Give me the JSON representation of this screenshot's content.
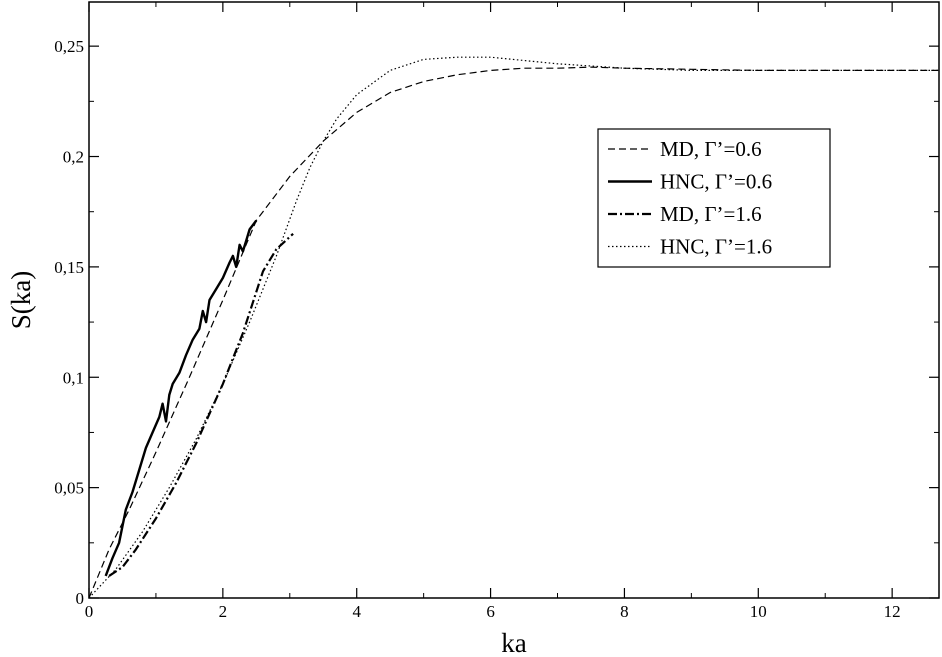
{
  "chart_data": {
    "type": "line",
    "title": "",
    "xlabel": "ka",
    "ylabel": "S(ka)",
    "xlim": [
      0,
      12.7
    ],
    "ylim": [
      0,
      0.27
    ],
    "grid": false,
    "legend_placement": "top-right",
    "x_ticks": [
      {
        "value": 0,
        "label": "0"
      },
      {
        "value": 2,
        "label": "2"
      },
      {
        "value": 4,
        "label": "4"
      },
      {
        "value": 6,
        "label": "6"
      },
      {
        "value": 8,
        "label": "8"
      },
      {
        "value": 10,
        "label": "10"
      },
      {
        "value": 12,
        "label": "12"
      }
    ],
    "y_ticks": [
      {
        "value": 0,
        "label": "0"
      },
      {
        "value": 0.05,
        "label": "0,05"
      },
      {
        "value": 0.1,
        "label": "0,1"
      },
      {
        "value": 0.15,
        "label": "0,15"
      },
      {
        "value": 0.2,
        "label": "0,2"
      },
      {
        "value": 0.25,
        "label": "0,25"
      }
    ],
    "series": [
      {
        "name": "MD,  Γ’=0.6",
        "style": "dashed",
        "x": [
          0,
          0.3,
          0.6,
          1.0,
          1.5,
          2.0,
          2.5,
          3.0,
          3.5,
          4.0,
          4.5,
          5.0,
          5.5,
          6.0,
          6.5,
          7.0,
          7.5,
          8.0,
          9.0,
          10.0,
          11.0,
          12.0,
          12.7
        ],
        "y": [
          0,
          0.022,
          0.04,
          0.066,
          0.1,
          0.135,
          0.171,
          0.191,
          0.207,
          0.22,
          0.229,
          0.234,
          0.237,
          0.239,
          0.24,
          0.24,
          0.2405,
          0.24,
          0.2395,
          0.239,
          0.239,
          0.239,
          0.239
        ]
      },
      {
        "name": "HNC,  Γ’=0.6",
        "style": "solid",
        "x": [
          0.25,
          0.35,
          0.45,
          0.55,
          0.65,
          0.75,
          0.85,
          0.95,
          1.05,
          1.1,
          1.15,
          1.2,
          1.25,
          1.35,
          1.45,
          1.55,
          1.65,
          1.7,
          1.75,
          1.8,
          1.9,
          2.0,
          2.1,
          2.15,
          2.2,
          2.25,
          2.3,
          2.35,
          2.4,
          2.5
        ],
        "y": [
          0.01,
          0.018,
          0.025,
          0.04,
          0.048,
          0.058,
          0.068,
          0.075,
          0.082,
          0.088,
          0.08,
          0.092,
          0.097,
          0.102,
          0.11,
          0.117,
          0.122,
          0.13,
          0.125,
          0.135,
          0.14,
          0.145,
          0.152,
          0.155,
          0.15,
          0.16,
          0.157,
          0.162,
          0.167,
          0.171
        ]
      },
      {
        "name": "MD,  Γ’=1.6",
        "style": "dashdot",
        "x": [
          0.3,
          0.5,
          0.7,
          1.0,
          1.3,
          1.6,
          2.0,
          2.3,
          2.6,
          2.8,
          3.05
        ],
        "y": [
          0.01,
          0.014,
          0.022,
          0.036,
          0.052,
          0.07,
          0.097,
          0.12,
          0.148,
          0.158,
          0.165
        ]
      },
      {
        "name": "HNC,  Γ’=1.6",
        "style": "dotted",
        "x": [
          0,
          0.4,
          0.8,
          1.2,
          1.6,
          2.0,
          2.4,
          2.8,
          3.1,
          3.3,
          3.5,
          3.7,
          4.0,
          4.5,
          5.0,
          5.5,
          6.0,
          6.5,
          7.0,
          7.5,
          8.0,
          9.0,
          10.0,
          11.0,
          12.0,
          12.7
        ],
        "y": [
          0,
          0.013,
          0.03,
          0.05,
          0.072,
          0.097,
          0.125,
          0.155,
          0.18,
          0.195,
          0.207,
          0.217,
          0.228,
          0.239,
          0.244,
          0.245,
          0.245,
          0.2435,
          0.242,
          0.241,
          0.24,
          0.239,
          0.239,
          0.239,
          0.239,
          0.239
        ]
      }
    ]
  }
}
